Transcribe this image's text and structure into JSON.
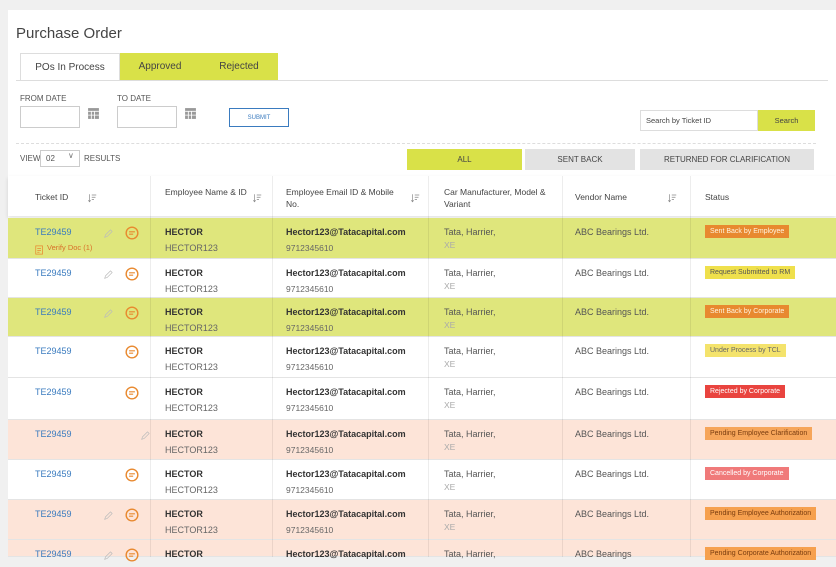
{
  "header": {
    "title": "Purchase Order"
  },
  "tabs": [
    "POs In Process",
    "Approved",
    "Rejected"
  ],
  "filters": {
    "from_date": "FROM DATE",
    "to_date": "TO DATE",
    "submit": "SUBMIT",
    "search_placeholder": "Search by Ticket ID",
    "search": "Search"
  },
  "view": {
    "label": "VIEW",
    "count": "02",
    "results": "RESULTS"
  },
  "quick_filters": [
    "ALL",
    "SENT BACK",
    "RETURNED FOR CLARIFICATION"
  ],
  "table": {
    "columns": [
      "Ticket ID",
      "Employee Name & ID",
      "Employee Email ID & Mobile No.",
      "Car Manufacturer, Model & Variant",
      "Vendor Name",
      "Status"
    ],
    "rows": [
      {
        "ticket": "TE29459",
        "doc": "Verify Doc (1)",
        "name": "HECTOR",
        "id": "HECTOR123",
        "email": "Hector123@Tatacapital.com",
        "mobile": "9712345610",
        "car": "Tata, Harrier,",
        "variant": "XE",
        "vendor": "ABC Bearings Ltd.",
        "status": "Sent Back by Employee"
      },
      {
        "ticket": "TE29459",
        "name": "HECTOR",
        "id": "HECTOR123",
        "email": "Hector123@Tatacapital.com",
        "mobile": "9712345610",
        "car": "Tata, Harrier,",
        "variant": "XE",
        "vendor": "ABC Bearings Ltd.",
        "status": "Request Submitted to RM"
      },
      {
        "ticket": "TE29459",
        "name": "HECTOR",
        "id": "HECTOR123",
        "email": "Hector123@Tatacapital.com",
        "mobile": "9712345610",
        "car": "Tata, Harrier,",
        "variant": "XE",
        "vendor": "ABC Bearings Ltd.",
        "status": "Sent Back by Corporate"
      },
      {
        "ticket": "TE29459",
        "name": "HECTOR",
        "id": "HECTOR123",
        "email": "Hector123@Tatacapital.com",
        "mobile": "9712345610",
        "car": "Tata, Harrier,",
        "variant": "XE",
        "vendor": "ABC Bearings Ltd.",
        "status": "Under Process by TCL"
      },
      {
        "ticket": "TE29459",
        "name": "HECTOR",
        "id": "HECTOR123",
        "email": "Hector123@Tatacapital.com",
        "mobile": "9712345610",
        "car": "Tata, Harrier,",
        "variant": "XE",
        "vendor": "ABC Bearings Ltd.",
        "status": "Rejected by Corporate"
      },
      {
        "ticket": "TE29459",
        "name": "HECTOR",
        "id": "HECTOR123",
        "email": "Hector123@Tatacapital.com",
        "mobile": "9712345610",
        "car": "Tata, Harrier,",
        "variant": "XE",
        "vendor": "ABC Bearings Ltd.",
        "status": "Pending Employee Clarification"
      },
      {
        "ticket": "TE29459",
        "name": "HECTOR",
        "id": "HECTOR123",
        "email": "Hector123@Tatacapital.com",
        "mobile": "9712345610",
        "car": "Tata, Harrier,",
        "variant": "XE",
        "vendor": "ABC Bearings Ltd.",
        "status": "Cancelled by Corporate"
      },
      {
        "ticket": "TE29459",
        "name": "HECTOR",
        "id": "HECTOR123",
        "email": "Hector123@Tatacapital.com",
        "mobile": "9712345610",
        "car": "Tata, Harrier,",
        "variant": "XE",
        "vendor": "ABC Bearings Ltd.",
        "status": "Pending Employee Authorization"
      },
      {
        "ticket": "TE29459",
        "name": "HECTOR",
        "email": "Hector123@Tatacapital.com",
        "car": "Tata, Harrier,",
        "vendor": "ABC Bearings",
        "status": "Pending Corporate Authorization"
      }
    ]
  }
}
